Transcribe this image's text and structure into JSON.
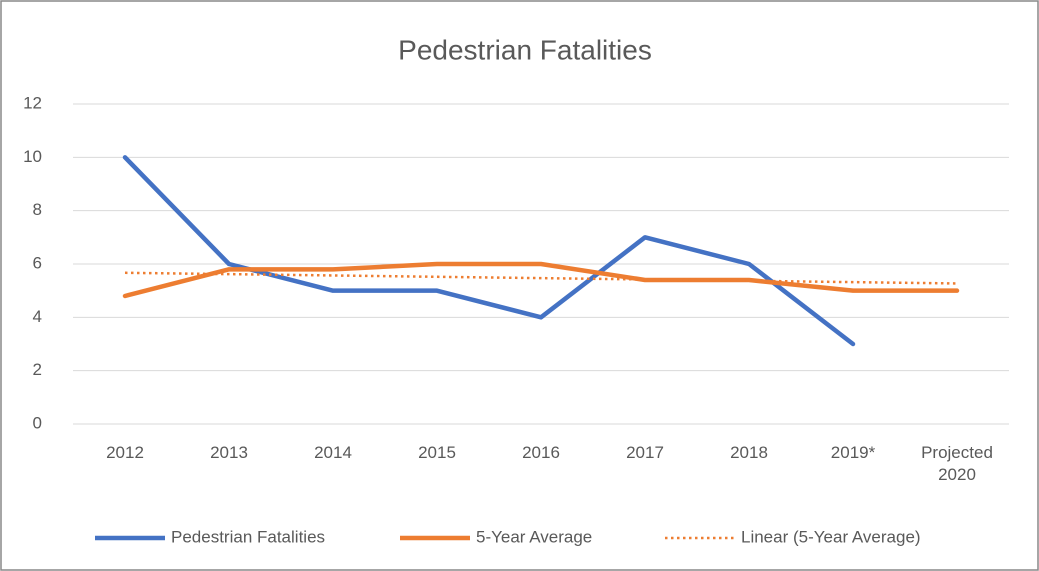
{
  "chart_data": {
    "type": "line",
    "title": "Pedestrian Fatalities",
    "categories": [
      "2012",
      "2013",
      "2014",
      "2015",
      "2016",
      "2017",
      "2018",
      "2019*",
      "Projected 2020"
    ],
    "series": [
      {
        "name": "Pedestrian Fatalities",
        "color": "#4472c4",
        "style": "solid",
        "values": [
          10,
          6,
          5,
          5,
          4,
          7,
          6,
          3,
          null
        ]
      },
      {
        "name": "5-Year Average",
        "color": "#ed7d31",
        "style": "solid",
        "values": [
          4.8,
          5.8,
          5.8,
          6,
          6,
          5.4,
          5.4,
          5,
          5
        ]
      },
      {
        "name": "Linear (5-Year Average)",
        "color": "#ed7d31",
        "style": "dotted",
        "values": [
          5.67,
          5.62,
          5.57,
          5.52,
          5.47,
          5.42,
          5.37,
          5.32,
          5.27
        ]
      }
    ],
    "ylim": [
      0,
      12
    ],
    "yticks": [
      0,
      2,
      4,
      6,
      8,
      10,
      12
    ],
    "grid": true,
    "legend": "bottom"
  }
}
